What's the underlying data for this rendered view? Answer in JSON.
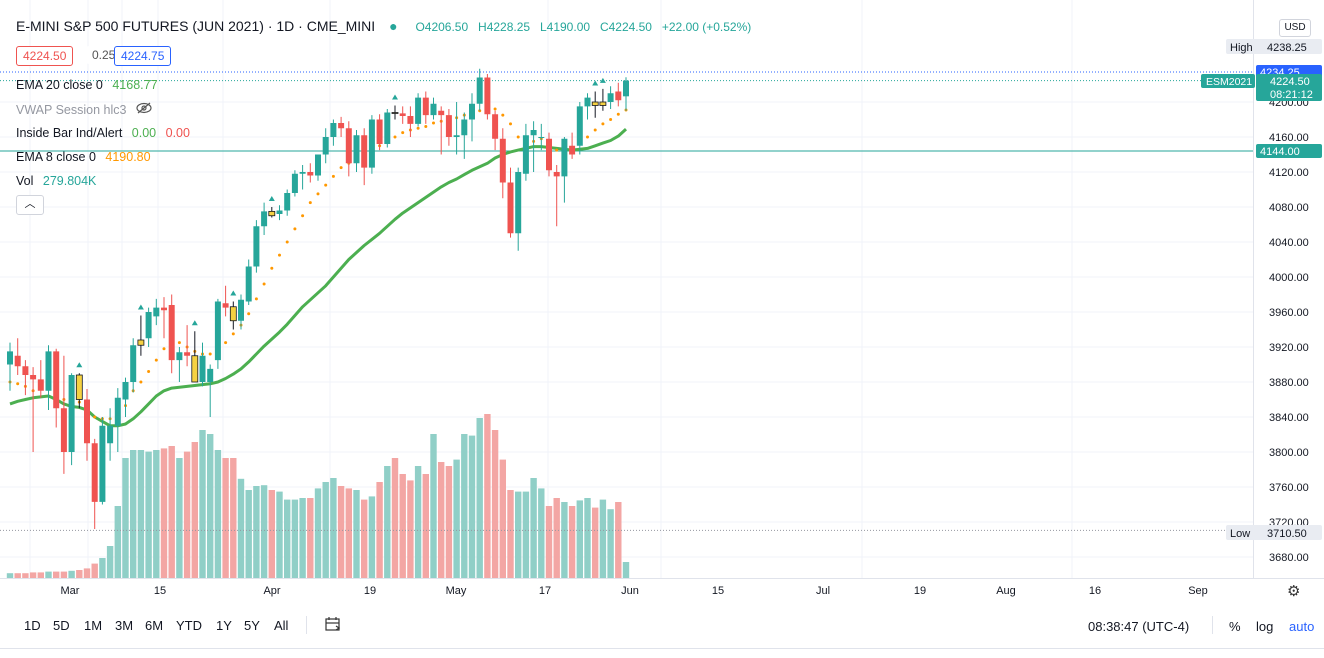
{
  "header": {
    "symbol": "E-MINI S&P 500 FUTURES (JUN 2021)",
    "sep1": "·",
    "interval": "1D",
    "sep2": "·",
    "exchange": "CME_MINI",
    "ohlc_open": "O4206.50",
    "ohlc_high": "H4228.25",
    "ohlc_low": "L4190.00",
    "ohlc_close": "C4224.50",
    "ohlc_change": "+22.00 (+0.52%)"
  },
  "trade": {
    "sell": "4224.50",
    "spread": "0.25",
    "buy": "4224.75"
  },
  "indicators": {
    "ema20_label": "EMA 20 close 0",
    "ema20_value": "4168.77",
    "vwap_label": "VWAP Session hlc3",
    "inside_label": "Inside Bar Ind/Alert",
    "inside_v1": "0.00",
    "inside_v2": "0.00",
    "ema8_label": "EMA 8 close 0",
    "ema8_value": "4190.80",
    "vol_label": "Vol",
    "vol_value": "279.804K"
  },
  "colors": {
    "up": "#26a69a",
    "down": "#ef5350",
    "inside": "#f5d142",
    "ema20": "#4caf50",
    "ema8": "#ff9800",
    "vol_up": "#90cfc7",
    "vol_down": "#f3a6a4",
    "hline": "#26a69a"
  },
  "price_axis": {
    "currency": "USD",
    "ticks": [
      "4200.00",
      "4160.00",
      "4120.00",
      "4080.00",
      "4040.00",
      "4000.00",
      "3960.00",
      "3920.00",
      "3880.00",
      "3840.00",
      "3800.00",
      "3760.00",
      "3720.00",
      "3680.00"
    ],
    "high_label": "High",
    "high_value": "4238.25",
    "marker_4234": "4234.25",
    "symbol_tag": "ESM2021",
    "last_value": "4224.50",
    "countdown": "08:21:12",
    "hline_value": "4144.00",
    "low_label": "Low",
    "low_value": "3710.50"
  },
  "time_axis": {
    "labels": [
      "Mar",
      "15",
      "Apr",
      "19",
      "May",
      "17",
      "Jun",
      "15",
      "Jul",
      "19",
      "Aug",
      "16",
      "Sep"
    ]
  },
  "bottom_toolbar": {
    "ranges": [
      "1D",
      "5D",
      "1M",
      "3M",
      "6M",
      "YTD",
      "1Y",
      "5Y",
      "All"
    ],
    "clock": "08:38:47 (UTC-4)",
    "percent": "%",
    "log": "log",
    "auto": "auto"
  },
  "chart_data": {
    "type": "candlestick",
    "title": "E-MINI S&P 500 FUTURES (JUN 2021)",
    "interval": "1D",
    "y_range": [
      3660,
      4250
    ],
    "date_range": [
      "2021-02-24",
      "2021-06-01"
    ],
    "horizontal_line": 4144.0,
    "candles": [
      {
        "o": 3900,
        "h": 3925,
        "l": 3870,
        "c": 3915,
        "ind": "none"
      },
      {
        "o": 3910,
        "h": 3930,
        "l": 3888,
        "c": 3898,
        "ind": "none"
      },
      {
        "o": 3898,
        "h": 3905,
        "l": 3865,
        "c": 3888,
        "ind": "none"
      },
      {
        "o": 3888,
        "h": 3897,
        "l": 3800,
        "c": 3883,
        "ind": "none"
      },
      {
        "o": 3883,
        "h": 3905,
        "l": 3862,
        "c": 3870,
        "ind": "none"
      },
      {
        "o": 3870,
        "h": 3922,
        "l": 3848,
        "c": 3915,
        "ind": "none"
      },
      {
        "o": 3915,
        "h": 3918,
        "l": 3828,
        "c": 3850,
        "ind": "none"
      },
      {
        "o": 3850,
        "h": 3910,
        "l": 3775,
        "c": 3800,
        "ind": "none"
      },
      {
        "o": 3800,
        "h": 3890,
        "l": 3785,
        "c": 3888,
        "ind": "none"
      },
      {
        "o": 3888,
        "h": 3890,
        "l": 3850,
        "c": 3860,
        "ind": "inside"
      },
      {
        "o": 3860,
        "h": 3872,
        "l": 3790,
        "c": 3810,
        "ind": "none"
      },
      {
        "o": 3810,
        "h": 3815,
        "l": 3712,
        "c": 3743,
        "ind": "none"
      },
      {
        "o": 3743,
        "h": 3840,
        "l": 3740,
        "c": 3830,
        "ind": "none"
      },
      {
        "o": 3810,
        "h": 3850,
        "l": 3790,
        "c": 3830,
        "ind": "none"
      },
      {
        "o": 3830,
        "h": 3873,
        "l": 3800,
        "c": 3862,
        "ind": "none"
      },
      {
        "o": 3860,
        "h": 3885,
        "l": 3840,
        "c": 3880,
        "ind": "none"
      },
      {
        "o": 3880,
        "h": 3930,
        "l": 3868,
        "c": 3922,
        "ind": "none"
      },
      {
        "o": 3922,
        "h": 3956,
        "l": 3910,
        "c": 3928,
        "ind": "inside"
      },
      {
        "o": 3930,
        "h": 3965,
        "l": 3920,
        "c": 3960,
        "ind": "none"
      },
      {
        "o": 3955,
        "h": 3975,
        "l": 3945,
        "c": 3965,
        "ind": "none"
      },
      {
        "o": 3965,
        "h": 3977,
        "l": 3930,
        "c": 3962,
        "ind": "none"
      },
      {
        "o": 3968,
        "h": 3980,
        "l": 3890,
        "c": 3905,
        "ind": "none"
      },
      {
        "o": 3905,
        "h": 3920,
        "l": 3880,
        "c": 3914,
        "ind": "none"
      },
      {
        "o": 3914,
        "h": 3945,
        "l": 3898,
        "c": 3910,
        "ind": "none"
      },
      {
        "o": 3910,
        "h": 3938,
        "l": 3880,
        "c": 3880,
        "ind": "inside"
      },
      {
        "o": 3880,
        "h": 3925,
        "l": 3875,
        "c": 3910,
        "ind": "none"
      },
      {
        "o": 3880,
        "h": 3900,
        "l": 3840,
        "c": 3895,
        "ind": "none"
      },
      {
        "o": 3905,
        "h": 3975,
        "l": 3895,
        "c": 3972,
        "ind": "none"
      },
      {
        "o": 3970,
        "h": 3990,
        "l": 3955,
        "c": 3965,
        "ind": "none"
      },
      {
        "o": 3966,
        "h": 3972,
        "l": 3940,
        "c": 3950,
        "ind": "inside"
      },
      {
        "o": 3950,
        "h": 3980,
        "l": 3940,
        "c": 3974,
        "ind": "none"
      },
      {
        "o": 3972,
        "h": 4020,
        "l": 3968,
        "c": 4012,
        "ind": "none"
      },
      {
        "o": 4012,
        "h": 4065,
        "l": 4005,
        "c": 4058,
        "ind": "none"
      },
      {
        "o": 4058,
        "h": 4085,
        "l": 4048,
        "c": 4075,
        "ind": "none"
      },
      {
        "o": 4075,
        "h": 4080,
        "l": 4068,
        "c": 4070,
        "ind": "inside"
      },
      {
        "o": 4072,
        "h": 4082,
        "l": 4065,
        "c": 4076,
        "ind": "none"
      },
      {
        "o": 4076,
        "h": 4100,
        "l": 4070,
        "c": 4096,
        "ind": "none"
      },
      {
        "o": 4096,
        "h": 4122,
        "l": 4092,
        "c": 4118,
        "ind": "none"
      },
      {
        "o": 4118,
        "h": 4128,
        "l": 4100,
        "c": 4120,
        "ind": "none"
      },
      {
        "o": 4120,
        "h": 4130,
        "l": 4108,
        "c": 4116,
        "ind": "none"
      },
      {
        "o": 4116,
        "h": 4140,
        "l": 4110,
        "c": 4140,
        "ind": "none"
      },
      {
        "o": 4140,
        "h": 4170,
        "l": 4130,
        "c": 4160,
        "ind": "none"
      },
      {
        "o": 4160,
        "h": 4180,
        "l": 4150,
        "c": 4176,
        "ind": "none"
      },
      {
        "o": 4176,
        "h": 4183,
        "l": 4160,
        "c": 4170,
        "ind": "none"
      },
      {
        "o": 4170,
        "h": 4178,
        "l": 4115,
        "c": 4130,
        "ind": "none"
      },
      {
        "o": 4130,
        "h": 4168,
        "l": 4120,
        "c": 4162,
        "ind": "none"
      },
      {
        "o": 4162,
        "h": 4170,
        "l": 4105,
        "c": 4125,
        "ind": "none"
      },
      {
        "o": 4125,
        "h": 4185,
        "l": 4118,
        "c": 4180,
        "ind": "none"
      },
      {
        "o": 4180,
        "h": 4186,
        "l": 4145,
        "c": 4152,
        "ind": "none"
      },
      {
        "o": 4152,
        "h": 4192,
        "l": 4148,
        "c": 4188,
        "ind": "none"
      },
      {
        "o": 4188,
        "h": 4196,
        "l": 4180,
        "c": 4187,
        "ind": "inside"
      },
      {
        "o": 4187,
        "h": 4195,
        "l": 4175,
        "c": 4184,
        "ind": "none"
      },
      {
        "o": 4184,
        "h": 4195,
        "l": 4160,
        "c": 4175,
        "ind": "none"
      },
      {
        "o": 4175,
        "h": 4210,
        "l": 4172,
        "c": 4205,
        "ind": "none"
      },
      {
        "o": 4205,
        "h": 4212,
        "l": 4175,
        "c": 4185,
        "ind": "none"
      },
      {
        "o": 4185,
        "h": 4205,
        "l": 4180,
        "c": 4198,
        "ind": "none"
      },
      {
        "o": 4190,
        "h": 4195,
        "l": 4140,
        "c": 4185,
        "ind": "none"
      },
      {
        "o": 4185,
        "h": 4192,
        "l": 4150,
        "c": 4160,
        "ind": "none"
      },
      {
        "o": 4160,
        "h": 4200,
        "l": 4140,
        "c": 4162,
        "ind": "none"
      },
      {
        "o": 4162,
        "h": 4188,
        "l": 4135,
        "c": 4180,
        "ind": "none"
      },
      {
        "o": 4180,
        "h": 4210,
        "l": 4155,
        "c": 4198,
        "ind": "none"
      },
      {
        "o": 4198,
        "h": 4238,
        "l": 4190,
        "c": 4228,
        "ind": "none"
      },
      {
        "o": 4228,
        "h": 4232,
        "l": 4180,
        "c": 4186,
        "ind": "none"
      },
      {
        "o": 4186,
        "h": 4190,
        "l": 4145,
        "c": 4158,
        "ind": "none"
      },
      {
        "o": 4158,
        "h": 4170,
        "l": 4090,
        "c": 4108,
        "ind": "none"
      },
      {
        "o": 4108,
        "h": 4125,
        "l": 4045,
        "c": 4050,
        "ind": "none"
      },
      {
        "o": 4050,
        "h": 4125,
        "l": 4030,
        "c": 4120,
        "ind": "none"
      },
      {
        "o": 4118,
        "h": 4175,
        "l": 4110,
        "c": 4162,
        "ind": "none"
      },
      {
        "o": 4162,
        "h": 4178,
        "l": 4120,
        "c": 4168,
        "ind": "none"
      },
      {
        "o": 4160,
        "h": 4175,
        "l": 4145,
        "c": 4160,
        "ind": "none"
      },
      {
        "o": 4158,
        "h": 4165,
        "l": 4115,
        "c": 4122,
        "ind": "none"
      },
      {
        "o": 4120,
        "h": 4128,
        "l": 4058,
        "c": 4115,
        "ind": "none"
      },
      {
        "o": 4115,
        "h": 4160,
        "l": 4085,
        "c": 4158,
        "ind": "none"
      },
      {
        "o": 4150,
        "h": 4165,
        "l": 4135,
        "c": 4140,
        "ind": "none"
      },
      {
        "o": 4150,
        "h": 4200,
        "l": 4140,
        "c": 4195,
        "ind": "none"
      },
      {
        "o": 4195,
        "h": 4210,
        "l": 4180,
        "c": 4205,
        "ind": "none"
      },
      {
        "o": 4200,
        "h": 4212,
        "l": 4182,
        "c": 4196,
        "ind": "inside"
      },
      {
        "o": 4196,
        "h": 4215,
        "l": 4190,
        "c": 4200,
        "ind": "inside"
      },
      {
        "o": 4200,
        "h": 4218,
        "l": 4192,
        "c": 4210,
        "ind": "none"
      },
      {
        "o": 4212,
        "h": 4222,
        "l": 4195,
        "c": 4202,
        "ind": "none"
      },
      {
        "o": 4206.5,
        "h": 4228.25,
        "l": 4190,
        "c": 4224.5,
        "ind": "none"
      }
    ],
    "volume": [
      6,
      6,
      6,
      7,
      7,
      8,
      8,
      8,
      9,
      10,
      12,
      18,
      25,
      40,
      90,
      150,
      160,
      160,
      158,
      160,
      162,
      165,
      150,
      158,
      170,
      185,
      180,
      160,
      150,
      150,
      124,
      110,
      115,
      116,
      110,
      108,
      98,
      98,
      100,
      100,
      112,
      120,
      125,
      115,
      112,
      110,
      98,
      102,
      120,
      140,
      150,
      130,
      122,
      140,
      130,
      180,
      145,
      140,
      148,
      180,
      178,
      200,
      205,
      185,
      148,
      110,
      108,
      108,
      125,
      112,
      90,
      100,
      95,
      90,
      97,
      100,
      88,
      98,
      86,
      95,
      20
    ],
    "ema20": [
      3855,
      3858,
      3860,
      3862,
      3863,
      3864,
      3860,
      3855,
      3852,
      3851,
      3848,
      3840,
      3835,
      3830,
      3830,
      3832,
      3838,
      3846,
      3855,
      3864,
      3870,
      3873,
      3874,
      3875,
      3876,
      3877,
      3878,
      3880,
      3884,
      3889,
      3895,
      3903,
      3912,
      3921,
      3929,
      3937,
      3946,
      3956,
      3966,
      3974,
      3982,
      3990,
      4000,
      4010,
      4020,
      4028,
      4036,
      4043,
      4050,
      4058,
      4066,
      4073,
      4079,
      4085,
      4091,
      4097,
      4103,
      4108,
      4112,
      4117,
      4122,
      4126,
      4130,
      4136,
      4140,
      4143,
      4145,
      4147,
      4149,
      4149,
      4148,
      4147,
      4146,
      4145,
      4146,
      4147,
      4150,
      4153,
      4156,
      4161,
      4169
    ],
    "ema8_dots": [
      3880,
      3878,
      3875,
      3870,
      3872,
      3875,
      3868,
      3860,
      3858,
      3857,
      3852,
      3840,
      3838,
      3838,
      3845,
      3853,
      3870,
      3880,
      3892,
      3905,
      3918,
      3925,
      3925,
      3920,
      3915,
      3912,
      3912,
      3915,
      3925,
      3935,
      3945,
      3958,
      3975,
      3992,
      4010,
      4025,
      4040,
      4055,
      4070,
      4085,
      4095,
      4105,
      4115,
      4125,
      4130,
      4136,
      4140,
      4145,
      4150,
      4155,
      4160,
      4165,
      4168,
      4170,
      4172,
      4176,
      4178,
      4180,
      4182,
      4185,
      4188,
      4190,
      4195,
      4192,
      4185,
      4175,
      4160,
      4152,
      4155,
      4158,
      4150,
      4145,
      4143,
      4148,
      4152,
      4160,
      4168,
      4175,
      4180,
      4186,
      4190.8
    ]
  }
}
